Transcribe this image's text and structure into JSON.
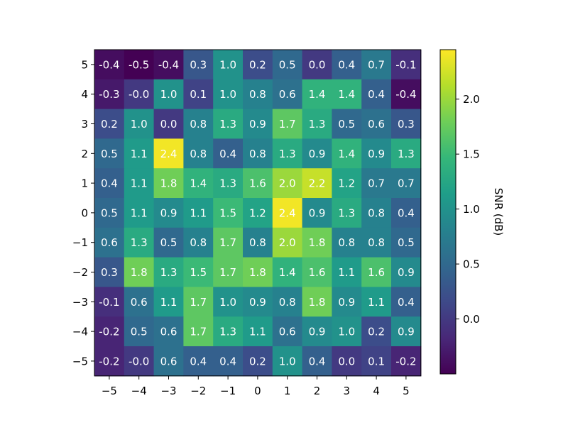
{
  "chart_data": {
    "type": "heatmap",
    "title": "",
    "xlabel": "",
    "ylabel": "",
    "x": [
      -5,
      -4,
      -3,
      -2,
      -1,
      0,
      1,
      2,
      3,
      4,
      5
    ],
    "y": [
      5,
      4,
      3,
      2,
      1,
      0,
      -1,
      -2,
      -3,
      -4,
      -5
    ],
    "x_tick_labels": [
      "−5",
      "−4",
      "−3",
      "−2",
      "−1",
      "0",
      "1",
      "2",
      "3",
      "4",
      "5"
    ],
    "y_tick_labels": [
      "5",
      "4",
      "3",
      "2",
      "1",
      "0",
      "−1",
      "−2",
      "−3",
      "−4",
      "−5"
    ],
    "values": [
      [
        -0.4,
        -0.5,
        -0.4,
        0.3,
        1.0,
        0.2,
        0.5,
        0.0,
        0.4,
        0.7,
        -0.1
      ],
      [
        -0.3,
        -0.0,
        1.0,
        0.1,
        1.0,
        0.8,
        0.6,
        1.4,
        1.4,
        0.4,
        -0.4
      ],
      [
        0.2,
        1.0,
        0.0,
        0.8,
        1.3,
        0.9,
        1.7,
        1.3,
        0.5,
        0.6,
        0.3
      ],
      [
        0.5,
        1.1,
        2.4,
        0.8,
        0.4,
        0.8,
        1.3,
        0.9,
        1.4,
        0.9,
        1.3
      ],
      [
        0.4,
        1.1,
        1.8,
        1.4,
        1.3,
        1.6,
        2.0,
        2.2,
        1.2,
        0.7,
        0.7
      ],
      [
        0.5,
        1.1,
        0.9,
        1.1,
        1.5,
        1.2,
        2.4,
        0.9,
        1.3,
        0.8,
        0.4
      ],
      [
        0.6,
        1.3,
        0.5,
        0.8,
        1.7,
        0.8,
        2.0,
        1.8,
        0.8,
        0.8,
        0.5
      ],
      [
        0.3,
        1.8,
        1.3,
        1.5,
        1.7,
        1.8,
        1.4,
        1.6,
        1.1,
        1.6,
        0.9
      ],
      [
        -0.1,
        0.6,
        1.1,
        1.7,
        1.0,
        0.9,
        0.8,
        1.8,
        0.9,
        1.1,
        0.4
      ],
      [
        -0.2,
        0.5,
        0.6,
        1.7,
        1.3,
        1.1,
        0.6,
        0.9,
        1.0,
        0.2,
        0.9
      ],
      [
        -0.2,
        -0.0,
        0.6,
        0.4,
        0.4,
        0.2,
        1.0,
        0.4,
        0.0,
        0.1,
        -0.2
      ]
    ],
    "cell_labels": [
      [
        "-0.4",
        "-0.5",
        "-0.4",
        "0.3",
        "1.0",
        "0.2",
        "0.5",
        "0.0",
        "0.4",
        "0.7",
        "-0.1"
      ],
      [
        "-0.3",
        "-0.0",
        "1.0",
        "0.1",
        "1.0",
        "0.8",
        "0.6",
        "1.4",
        "1.4",
        "0.4",
        "-0.4"
      ],
      [
        "0.2",
        "1.0",
        "0.0",
        "0.8",
        "1.3",
        "0.9",
        "1.7",
        "1.3",
        "0.5",
        "0.6",
        "0.3"
      ],
      [
        "0.5",
        "1.1",
        "2.4",
        "0.8",
        "0.4",
        "0.8",
        "1.3",
        "0.9",
        "1.4",
        "0.9",
        "1.3"
      ],
      [
        "0.4",
        "1.1",
        "1.8",
        "1.4",
        "1.3",
        "1.6",
        "2.0",
        "2.2",
        "1.2",
        "0.7",
        "0.7"
      ],
      [
        "0.5",
        "1.1",
        "0.9",
        "1.1",
        "1.5",
        "1.2",
        "2.4",
        "0.9",
        "1.3",
        "0.8",
        "0.4"
      ],
      [
        "0.6",
        "1.3",
        "0.5",
        "0.8",
        "1.7",
        "0.8",
        "2.0",
        "1.8",
        "0.8",
        "0.8",
        "0.5"
      ],
      [
        "0.3",
        "1.8",
        "1.3",
        "1.5",
        "1.7",
        "1.8",
        "1.4",
        "1.6",
        "1.1",
        "1.6",
        "0.9"
      ],
      [
        "-0.1",
        "0.6",
        "1.1",
        "1.7",
        "1.0",
        "0.9",
        "0.8",
        "1.8",
        "0.9",
        "1.1",
        "0.4"
      ],
      [
        "-0.2",
        "0.5",
        "0.6",
        "1.7",
        "1.3",
        "1.1",
        "0.6",
        "0.9",
        "1.0",
        "0.2",
        "0.9"
      ],
      [
        "-0.2",
        "-0.0",
        "0.6",
        "0.4",
        "0.4",
        "0.2",
        "1.0",
        "0.4",
        "0.0",
        "0.1",
        "-0.2"
      ]
    ],
    "colormap": "viridis",
    "colormap_stops": [
      "#440154",
      "#482878",
      "#3e4989",
      "#31688e",
      "#26828e",
      "#1f9e89",
      "#35b779",
      "#6ece58",
      "#b5de2b",
      "#fde725"
    ],
    "vmin": -0.5,
    "vmax": 2.45,
    "colorbar": {
      "label": "SNR (dB)",
      "ticks": [
        0.0,
        0.5,
        1.0,
        1.5,
        2.0
      ],
      "tick_labels": [
        "0.0",
        "0.5",
        "1.0",
        "1.5",
        "2.0"
      ]
    },
    "grid": false,
    "legend": "none"
  }
}
